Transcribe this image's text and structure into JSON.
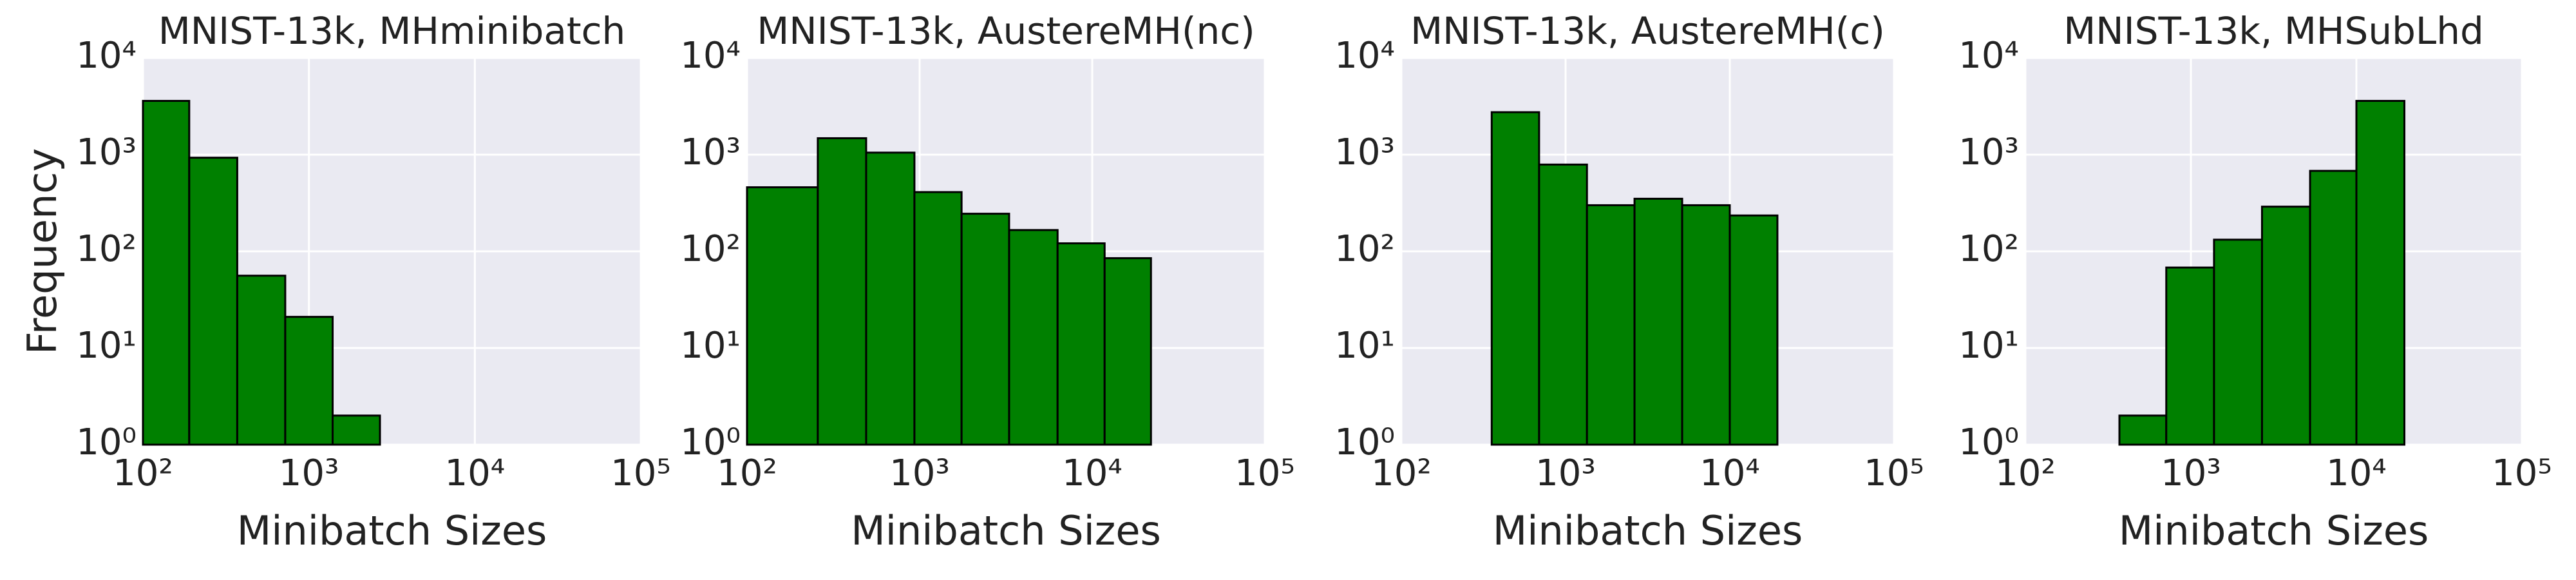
{
  "chart_data": [
    {
      "type": "histogram",
      "title": "MNIST-13k, MHminibatch",
      "xlabel": "Minibatch Sizes",
      "ylabel": "Frequency",
      "bins": [
        100,
        190,
        370,
        720,
        1390,
        2680
      ],
      "counts": [
        3600,
        930,
        56,
        21,
        2
      ],
      "color": "#008000",
      "xscale": "log",
      "yscale": "log",
      "xlim": [
        100,
        100000
      ],
      "ylim": [
        1,
        10000
      ],
      "grid": true,
      "xticks": [
        {
          "value": 100,
          "label": "10²"
        },
        {
          "value": 1000,
          "label": "10³"
        },
        {
          "value": 10000,
          "label": "10⁴"
        },
        {
          "value": 100000,
          "label": "10⁵"
        }
      ],
      "yticks": [
        {
          "value": 1,
          "label": "10⁰"
        },
        {
          "value": 10,
          "label": "10¹"
        },
        {
          "value": 100,
          "label": "10²"
        },
        {
          "value": 1000,
          "label": "10³"
        },
        {
          "value": 10000,
          "label": "10⁴"
        }
      ]
    },
    {
      "type": "histogram",
      "title": "MNIST-13k, AustereMH(nc)",
      "xlabel": "Minibatch Sizes",
      "bins": [
        100,
        257,
        490,
        933,
        1750,
        3300,
        6300,
        11800,
        21900
      ],
      "counts": [
        460,
        1480,
        1050,
        410,
        245,
        166,
        121,
        85
      ],
      "color": "#008000",
      "xscale": "log",
      "yscale": "log",
      "xlim": [
        100,
        100000
      ],
      "ylim": [
        1,
        10000
      ],
      "grid": true,
      "xticks": [
        {
          "value": 100,
          "label": "10²"
        },
        {
          "value": 1000,
          "label": "10³"
        },
        {
          "value": 10000,
          "label": "10⁴"
        },
        {
          "value": 100000,
          "label": "10⁵"
        }
      ],
      "yticks": [
        {
          "value": 1,
          "label": "10⁰"
        },
        {
          "value": 10,
          "label": "10¹"
        },
        {
          "value": 100,
          "label": "10²"
        },
        {
          "value": 1000,
          "label": "10³"
        },
        {
          "value": 10000,
          "label": "10⁴"
        }
      ]
    },
    {
      "type": "histogram",
      "title": "MNIST-13k, AustereMH(c)",
      "xlabel": "Minibatch Sizes",
      "bins": [
        355,
        690,
        1350,
        2630,
        5130,
        10000,
        19500
      ],
      "counts": [
        2750,
        790,
        300,
        350,
        300,
        235
      ],
      "color": "#008000",
      "xscale": "log",
      "yscale": "log",
      "xlim": [
        100,
        100000
      ],
      "ylim": [
        1,
        10000
      ],
      "grid": true,
      "xticks": [
        {
          "value": 100,
          "label": "10²"
        },
        {
          "value": 1000,
          "label": "10³"
        },
        {
          "value": 10000,
          "label": "10⁴"
        },
        {
          "value": 100000,
          "label": "10⁵"
        }
      ],
      "yticks": [
        {
          "value": 1,
          "label": "10⁰"
        },
        {
          "value": 10,
          "label": "10¹"
        },
        {
          "value": 100,
          "label": "10²"
        },
        {
          "value": 1000,
          "label": "10³"
        },
        {
          "value": 10000,
          "label": "10⁴"
        }
      ]
    },
    {
      "type": "histogram",
      "title": "MNIST-13k, MHSubLhd",
      "xlabel": "Minibatch Sizes",
      "bins": [
        370,
        710,
        1380,
        2690,
        5250,
        10000,
        19500
      ],
      "counts": [
        2,
        68,
        132,
        290,
        680,
        3600
      ],
      "color": "#008000",
      "xscale": "log",
      "yscale": "log",
      "xlim": [
        100,
        100000
      ],
      "ylim": [
        1,
        10000
      ],
      "grid": true,
      "xticks": [
        {
          "value": 100,
          "label": "10²"
        },
        {
          "value": 1000,
          "label": "10³"
        },
        {
          "value": 10000,
          "label": "10⁴"
        },
        {
          "value": 100000,
          "label": "10⁵"
        }
      ],
      "yticks": [
        {
          "value": 1,
          "label": "10⁰"
        },
        {
          "value": 10,
          "label": "10¹"
        },
        {
          "value": 100,
          "label": "10²"
        },
        {
          "value": 1000,
          "label": "10³"
        },
        {
          "value": 10000,
          "label": "10⁴"
        }
      ]
    }
  ]
}
